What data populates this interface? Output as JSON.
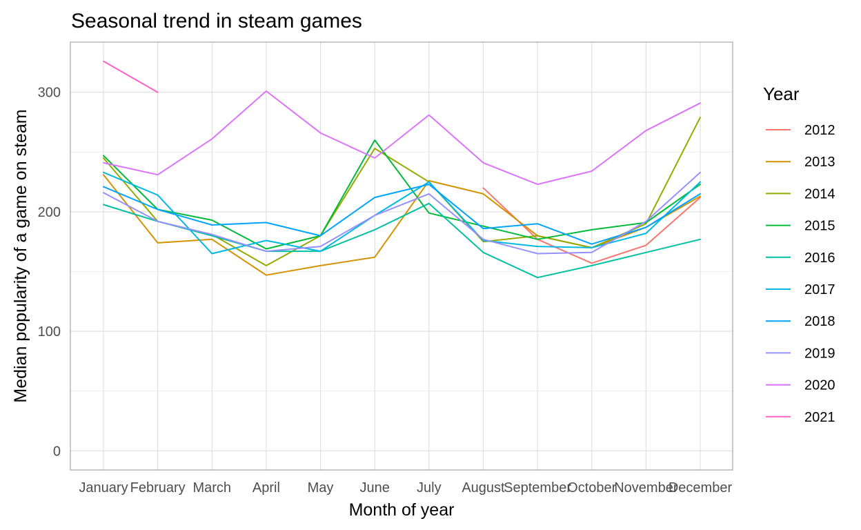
{
  "chart_data": {
    "type": "line",
    "title": "Seasonal trend in steam games",
    "xlabel": "Month of year",
    "ylabel": "Median popularity of a game on steam",
    "categories": [
      "January",
      "February",
      "March",
      "April",
      "May",
      "June",
      "July",
      "August",
      "September",
      "October",
      "November",
      "December"
    ],
    "ylim": [
      -16,
      342
    ],
    "y_ticks": [
      0,
      100,
      200,
      300
    ],
    "grid": true,
    "legend": {
      "title": "Year",
      "position": "right"
    },
    "series": [
      {
        "name": "2012",
        "color": "#F8766D",
        "values": [
          null,
          null,
          null,
          null,
          null,
          null,
          null,
          220,
          177,
          157,
          172,
          212
        ]
      },
      {
        "name": "2013",
        "color": "#D39200",
        "values": [
          231,
          174,
          177,
          147,
          155,
          162,
          226,
          215,
          180,
          170,
          187,
          213
        ]
      },
      {
        "name": "2014",
        "color": "#93AA00",
        "values": [
          245,
          192,
          181,
          155,
          180,
          253,
          225,
          175,
          180,
          170,
          190,
          279
        ]
      },
      {
        "name": "2015",
        "color": "#00BA38",
        "values": [
          247,
          202,
          193,
          169,
          180,
          260,
          199,
          188,
          177,
          185,
          191,
          223
        ]
      },
      {
        "name": "2016",
        "color": "#00C19F",
        "values": [
          206,
          192,
          180,
          167,
          167,
          185,
          207,
          166,
          145,
          155,
          166,
          177
        ]
      },
      {
        "name": "2017",
        "color": "#00B9E3",
        "values": [
          233,
          214,
          165,
          176,
          167,
          197,
          225,
          176,
          171,
          170,
          182,
          225
        ]
      },
      {
        "name": "2018",
        "color": "#00A4FF",
        "values": [
          221,
          202,
          189,
          191,
          180,
          212,
          223,
          186,
          190,
          173,
          187,
          215
        ]
      },
      {
        "name": "2019",
        "color": "#9590FF",
        "values": [
          216,
          192,
          181,
          167,
          171,
          197,
          215,
          177,
          165,
          166,
          192,
          233
        ]
      },
      {
        "name": "2020",
        "color": "#DB72FB",
        "values": [
          241,
          231,
          261,
          301,
          266,
          245,
          281,
          241,
          223,
          234,
          268,
          291
        ]
      },
      {
        "name": "2021",
        "color": "#FF61C3",
        "values": [
          326,
          300,
          null,
          null,
          null,
          null,
          null,
          null,
          null,
          null,
          null,
          null
        ]
      }
    ]
  }
}
